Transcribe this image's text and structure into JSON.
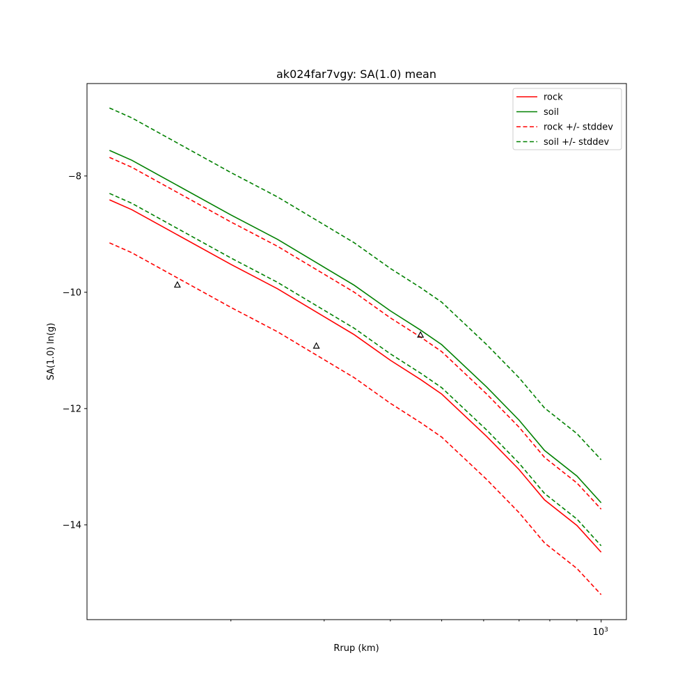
{
  "chart_data": {
    "type": "line",
    "title": "ak024far7vgy: SA(1.0) mean",
    "xlabel": "Rrup (km)",
    "ylabel": "SA(1.0) ln(g)",
    "xscale": "log",
    "xlim": [
      107,
      1116
    ],
    "ylim": [
      -15.63,
      -6.41
    ],
    "yticks": [
      -8,
      -10,
      -12,
      -14
    ],
    "ytick_labels": [
      "−8",
      "−10",
      "−12",
      "−14"
    ],
    "xticks_major": [
      1000
    ],
    "xtick_major_label": {
      "base": "10",
      "exp": "3"
    },
    "xticks_minor": [
      200,
      300,
      400,
      500,
      600,
      700,
      800,
      900
    ],
    "grid": false,
    "legend_placement": "top-right",
    "x": [
      118,
      130,
      154,
      200,
      245,
      300,
      342,
      400,
      456,
      500,
      608,
      700,
      782,
      900,
      1000
    ],
    "series": [
      {
        "name": "rock",
        "color": "#ff0000",
        "style": "solid",
        "values": [
          -8.41,
          -8.58,
          -8.95,
          -9.52,
          -9.94,
          -10.42,
          -10.73,
          -11.17,
          -11.5,
          -11.75,
          -12.48,
          -13.05,
          -13.57,
          -14.01,
          -14.47
        ]
      },
      {
        "name": "soil",
        "color": "#008000",
        "style": "solid",
        "values": [
          -7.56,
          -7.73,
          -8.1,
          -8.67,
          -9.09,
          -9.57,
          -9.88,
          -10.32,
          -10.65,
          -10.9,
          -11.63,
          -12.2,
          -12.72,
          -13.16,
          -13.62
        ]
      },
      {
        "name": "rock +/- stddev",
        "color": "#ff0000",
        "style": "dashed",
        "upper": [
          -7.68,
          -7.85,
          -8.22,
          -8.79,
          -9.21,
          -9.69,
          -10.0,
          -10.44,
          -10.77,
          -11.02,
          -11.75,
          -12.32,
          -12.84,
          -13.28,
          -13.73
        ],
        "lower": [
          -9.15,
          -9.32,
          -9.69,
          -10.26,
          -10.68,
          -11.16,
          -11.47,
          -11.91,
          -12.24,
          -12.49,
          -13.22,
          -13.79,
          -14.31,
          -14.75,
          -15.2
        ]
      },
      {
        "name": "soil +/- stddev",
        "color": "#008000",
        "style": "dashed",
        "upper": [
          -6.83,
          -7.0,
          -7.37,
          -7.94,
          -8.36,
          -8.84,
          -9.15,
          -9.59,
          -9.92,
          -10.17,
          -10.9,
          -11.47,
          -11.99,
          -12.43,
          -12.88
        ],
        "lower": [
          -8.3,
          -8.47,
          -8.84,
          -9.41,
          -9.83,
          -10.31,
          -10.62,
          -11.06,
          -11.39,
          -11.64,
          -12.37,
          -12.94,
          -13.46,
          -13.9,
          -14.36
        ]
      }
    ],
    "observations": {
      "marker": "triangle",
      "x": [
        158.5,
        290,
        456
      ],
      "y": [
        -9.87,
        -10.92,
        -10.73
      ]
    }
  }
}
